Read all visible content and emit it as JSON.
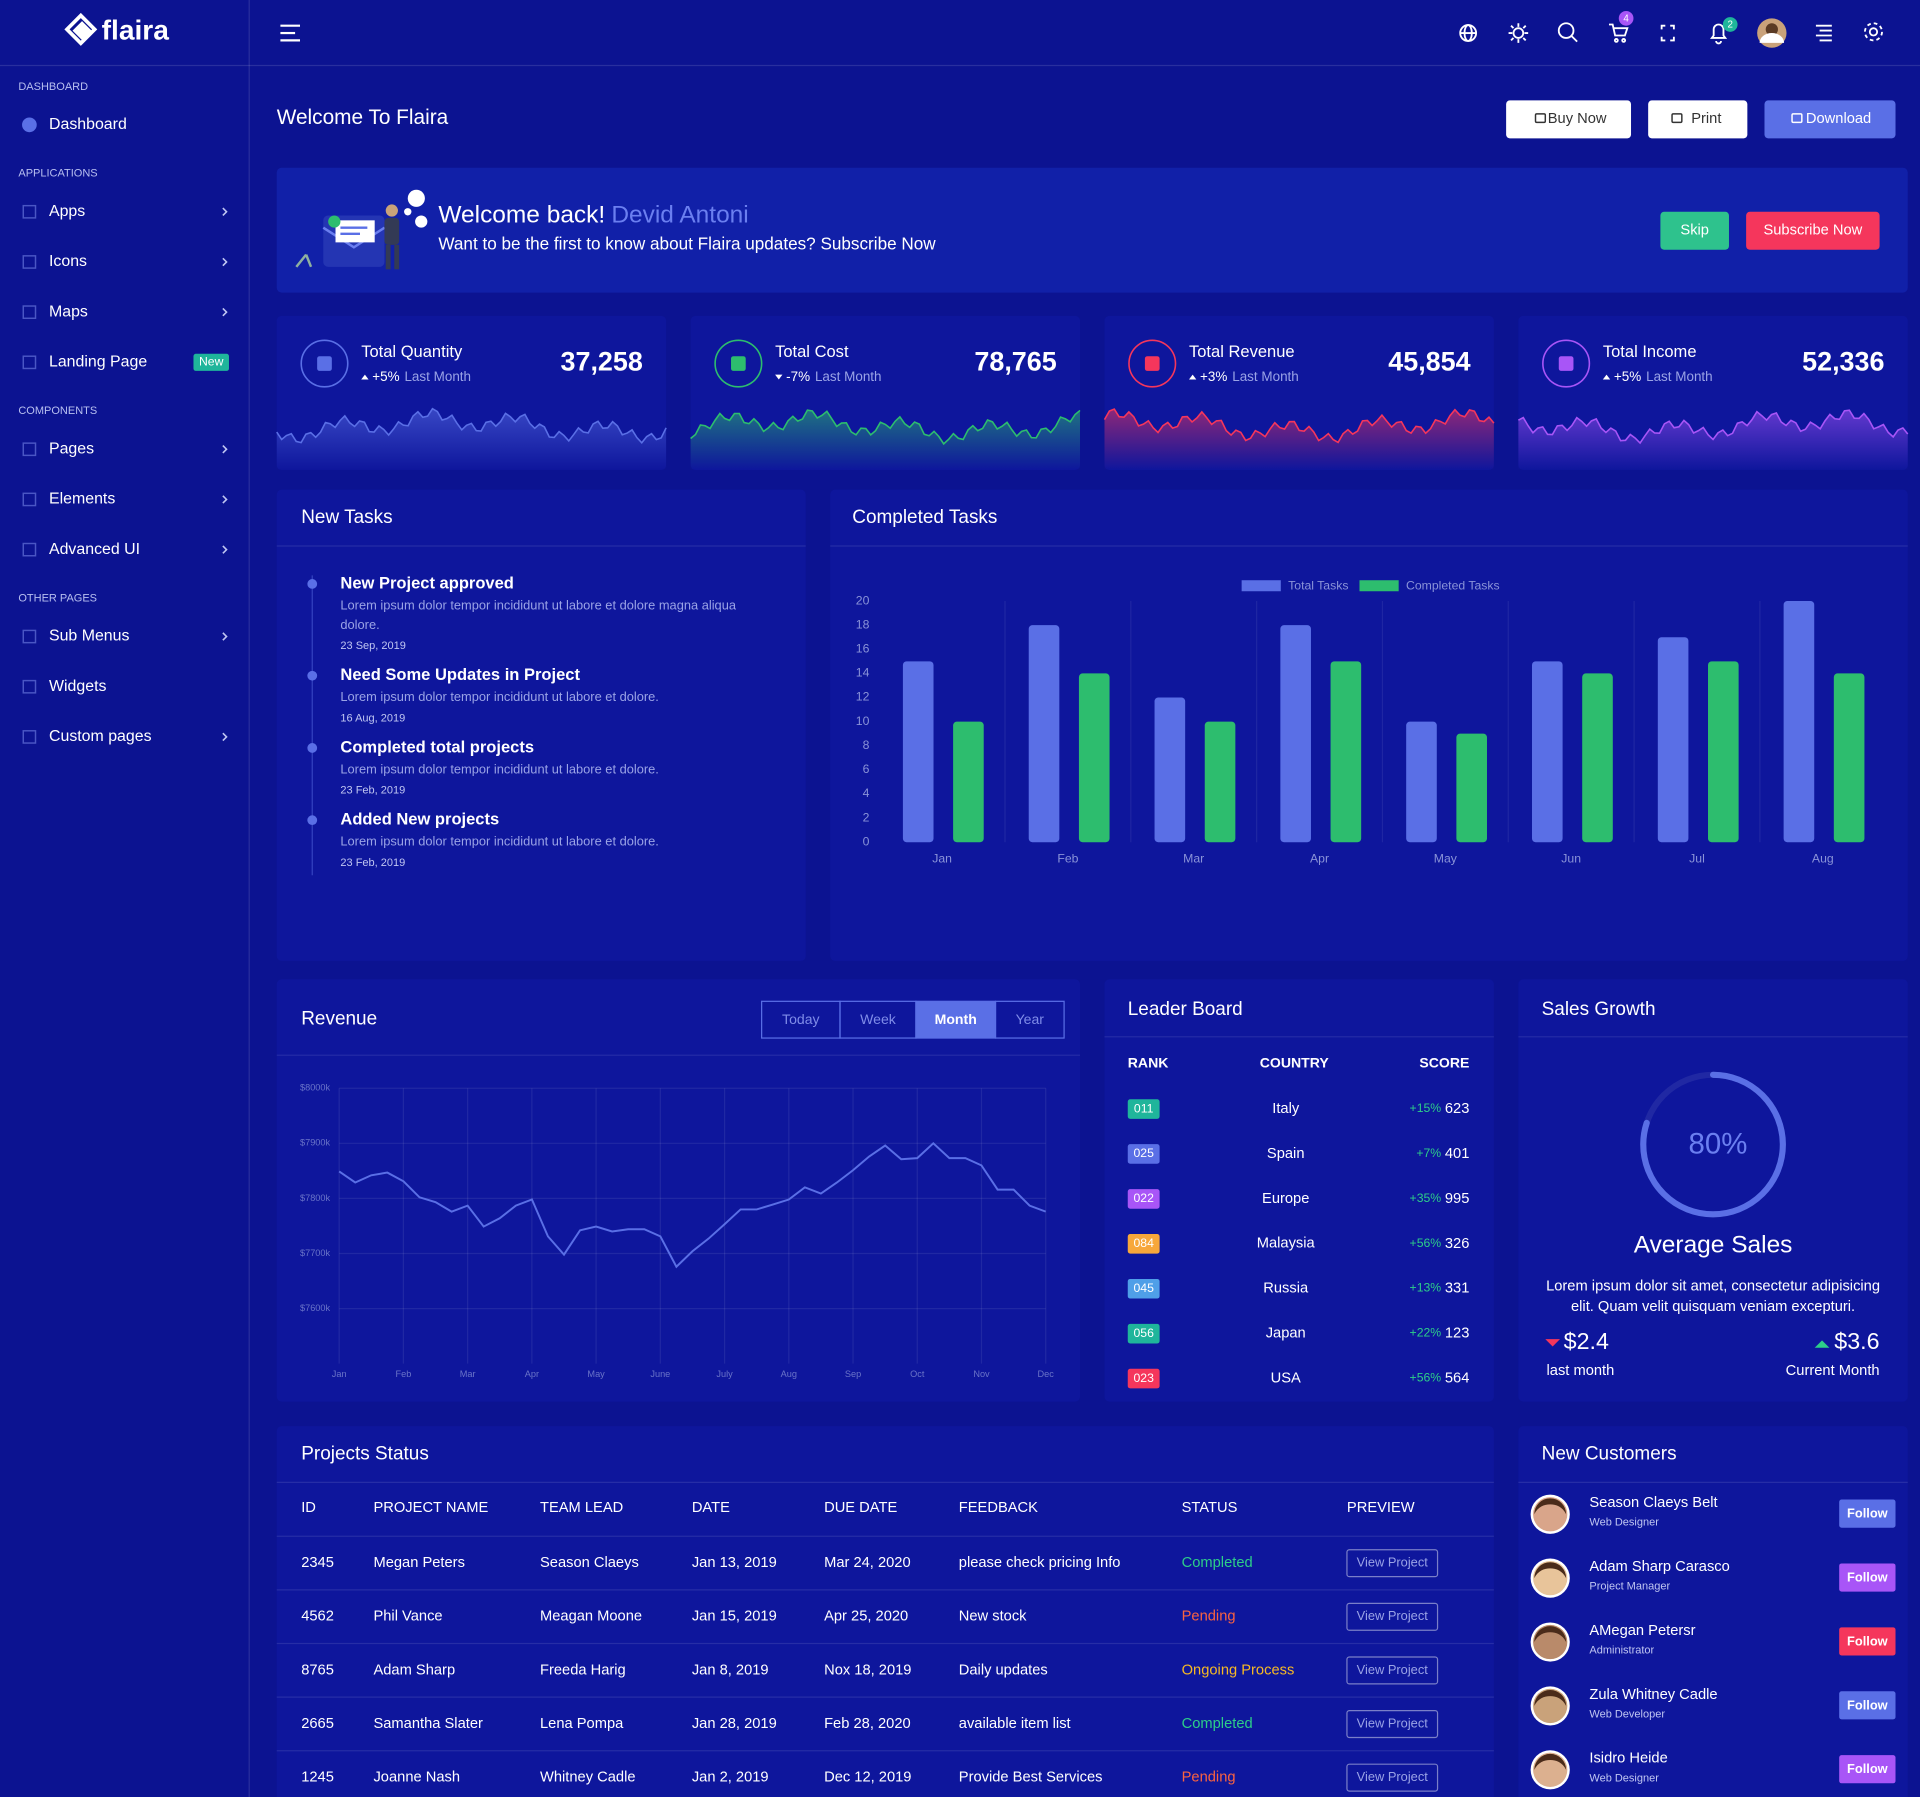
{
  "brand": "flaira",
  "header": {
    "cart_badge": 4,
    "notification_badge": 2
  },
  "sidebar": [
    {
      "title": "DASHBOARD",
      "items": [
        {
          "label": "Dashboard"
        }
      ]
    },
    {
      "title": "APPLICATIONS",
      "items": [
        {
          "label": "Apps",
          "arrow": true
        },
        {
          "label": "Icons",
          "arrow": true
        },
        {
          "label": "Maps",
          "arrow": true
        },
        {
          "label": "Landing Page",
          "badge": "New"
        }
      ]
    },
    {
      "title": "COMPONENTS",
      "items": [
        {
          "label": "Pages",
          "arrow": true
        },
        {
          "label": "Elements",
          "arrow": true
        },
        {
          "label": "Advanced UI",
          "arrow": true
        }
      ]
    },
    {
      "title": "OTHER PAGES",
      "items": [
        {
          "label": "Sub Menus",
          "arrow": true
        },
        {
          "label": "Widgets"
        },
        {
          "label": "Custom pages",
          "arrow": true
        }
      ]
    }
  ],
  "page_title": "Welcome To Flaira",
  "actions": [
    "Buy Now",
    "Print",
    "Download"
  ],
  "banner": {
    "greeting": "Welcome back!",
    "name": "Devid Antoni",
    "text": "Want to be the first to know about Flaira updates? Subscribe Now",
    "buttons": [
      "Skip",
      "Subscribe Now"
    ]
  },
  "stats": [
    {
      "title": "Total Quantity",
      "change": "+5%",
      "period": "Last Month",
      "value": "37,258",
      "color": "#5a6fe6"
    },
    {
      "title": "Total Cost",
      "change": "-7%",
      "period": "Last Month",
      "value": "78,765",
      "color": "#2dbd6e"
    },
    {
      "title": "Total Revenue",
      "change": "+3%",
      "period": "Last Month",
      "value": "45,854",
      "color": "#f5365c"
    },
    {
      "title": "Total Income",
      "change": "+5%",
      "period": "Last Month",
      "value": "52,336",
      "color": "#a855f7"
    }
  ],
  "tasks": {
    "title": "New Tasks",
    "items": [
      {
        "title": "New Project approved",
        "text": [
          "Lorem ipsum dolor tempor incididunt ut labore et dolore magna aliqua",
          "dolore."
        ],
        "date": "23 Sep, 2019"
      },
      {
        "title": "Need Some Updates in Project",
        "text": [
          "Lorem ipsum dolor tempor incididunt ut labore et dolore."
        ],
        "date": "16 Aug, 2019"
      },
      {
        "title": "Completed total projects",
        "text": [
          "Lorem ipsum dolor tempor incididunt ut labore et dolore."
        ],
        "date": "23 Feb, 2019"
      },
      {
        "title": "Added New projects",
        "text": [
          "Lorem ipsum dolor tempor incididunt ut labore et dolore."
        ],
        "date": "23 Feb, 2019"
      }
    ]
  },
  "completed_tasks": {
    "type": "bar",
    "title": "Completed Tasks",
    "categories": [
      "Jan",
      "Feb",
      "Mar",
      "Apr",
      "May",
      "Jun",
      "Jul",
      "Aug"
    ],
    "series": [
      {
        "name": "Total Tasks",
        "color": "#5a6fe6",
        "values": [
          15,
          18,
          12,
          18,
          10,
          15,
          17,
          20
        ]
      },
      {
        "name": "Completed Tasks",
        "color": "#2dbd6e",
        "values": [
          10,
          14,
          10,
          15,
          9,
          14,
          15,
          14
        ]
      }
    ],
    "ylim": [
      0,
      20
    ],
    "yticks": [
      0,
      2,
      4,
      6,
      8,
      10,
      12,
      14,
      16,
      18,
      20
    ]
  },
  "revenue": {
    "type": "line",
    "title": "Revenue",
    "tabs": [
      "Today",
      "Week",
      "Month",
      "Year"
    ],
    "active_tab": 2,
    "categories": [
      "Jan",
      null,
      null,
      null,
      "Feb",
      null,
      null,
      null,
      "Mar",
      null,
      null,
      null,
      "Apr",
      null,
      null,
      null,
      "May",
      null,
      null,
      null,
      "June",
      null,
      null,
      null,
      "July",
      null,
      null,
      null,
      "Aug",
      null,
      null,
      null,
      "Sep",
      null,
      null,
      null,
      "Oct",
      null,
      null,
      null,
      "Nov",
      null,
      null,
      null,
      "Dec"
    ],
    "values": [
      7849,
      7829,
      7842,
      7847,
      7831,
      7802,
      7793,
      7776,
      7787,
      7749,
      7764,
      7787,
      7798,
      7731,
      7698,
      7742,
      7749,
      7740,
      7744,
      7744,
      7731,
      7676,
      7704,
      7727,
      7753,
      7780,
      7780,
      7789,
      7798,
      7820,
      7809,
      7829,
      7851,
      7876,
      7896,
      7871,
      7873,
      7900,
      7873,
      7873,
      7860,
      7816,
      7816,
      7787,
      7776
    ],
    "color": "#5a6fe6",
    "ylim": [
      7500,
      8000
    ],
    "yticks": [
      {
        "value": 7600,
        "label": "$7600k"
      },
      {
        "value": 7700,
        "label": "$7700k"
      },
      {
        "value": 7800,
        "label": "$7800k"
      },
      {
        "value": 7900,
        "label": "$7900k"
      },
      {
        "value": 8000,
        "label": "$8000k"
      }
    ],
    "grid": true
  },
  "leaderboard": {
    "title": "Leader Board",
    "columns": [
      "RANK",
      "COUNTRY",
      "SCORE"
    ],
    "rows": [
      {
        "rank": "011",
        "country": "Italy",
        "change": "+15%",
        "score": 623,
        "color": "#1fb59b"
      },
      {
        "rank": "025",
        "country": "Spain",
        "change": "+7%",
        "score": 401,
        "color": "#5a6fe6"
      },
      {
        "rank": "022",
        "country": "Europe",
        "change": "+35%",
        "score": 995,
        "color": "#a855f7"
      },
      {
        "rank": "084",
        "country": "Malaysia",
        "change": "+56%",
        "score": 326,
        "color": "#f7a73b"
      },
      {
        "rank": "045",
        "country": "Russia",
        "change": "+13%",
        "score": 331,
        "color": "#4f9fe8"
      },
      {
        "rank": "056",
        "country": "Japan",
        "change": "+22%",
        "score": 123,
        "color": "#1fb59b"
      },
      {
        "rank": "023",
        "country": "USA",
        "change": "+56%",
        "score": 564,
        "color": "#f5365c"
      }
    ]
  },
  "sales_growth": {
    "title": "Sales Growth",
    "percent": 80,
    "percent_label": "80%",
    "subtitle": "Average Sales",
    "text": [
      "Lorem ipsum dolor sit amet, consectetur adipisicing",
      "elit. Quam velit quisquam veniam excepturi."
    ],
    "last": {
      "value": "$2.4",
      "label": "last month"
    },
    "current": {
      "value": "$3.6",
      "label": "Current Month"
    }
  },
  "projects": {
    "title": "Projects Status",
    "columns": [
      "ID",
      "PROJECT NAME",
      "TEAM LEAD",
      "DATE",
      "DUE DATE",
      "FEEDBACK",
      "STATUS",
      "PREVIEW"
    ],
    "status_colors": {
      "Completed": "#2dce89",
      "Pending": "#fb6340",
      "Ongoing Process": "#f7b924"
    },
    "rows": [
      [
        "2345",
        "Megan Peters",
        "Season Claeys",
        "Jan 13, 2019",
        "Mar 24, 2020",
        "please check pricing Info",
        "Completed",
        "View Project"
      ],
      [
        "4562",
        "Phil Vance",
        "Meagan Moone",
        "Jan 15, 2019",
        "Apr 25, 2020",
        "New stock",
        "Pending",
        "View Project"
      ],
      [
        "8765",
        "Adam Sharp",
        "Freeda Harig",
        "Jan 8, 2019",
        "Nox 18, 2019",
        "Daily updates",
        "Ongoing Process",
        "View Project"
      ],
      [
        "2665",
        "Samantha Slater",
        "Lena Pompa",
        "Jan 28, 2019",
        "Feb 28, 2020",
        "available item list",
        "Completed",
        "View Project"
      ],
      [
        "1245",
        "Joanne Nash",
        "Whitney Cadle",
        "Jan 2, 2019",
        "Dec 12, 2019",
        "Provide Best Services",
        "Pending",
        "View Project"
      ]
    ]
  },
  "customers": {
    "title": "New Customers",
    "items": [
      {
        "name": "Season Claeys Belt",
        "role": "Web Designer",
        "button": "Follow",
        "color": "#5a6fe6"
      },
      {
        "name": "Adam Sharp Carasco",
        "role": "Project Manager",
        "button": "Follow",
        "color": "#a855f7"
      },
      {
        "name": "AMegan Petersr",
        "role": "Administrator",
        "button": "Follow",
        "color": "#f5365c"
      },
      {
        "name": "Zula Whitney Cadle",
        "role": "Web Developer",
        "button": "Follow",
        "color": "#5a6fe6"
      },
      {
        "name": "Isidro Heide",
        "role": "Web Designer",
        "button": "Follow",
        "color": "#a855f7"
      }
    ]
  }
}
